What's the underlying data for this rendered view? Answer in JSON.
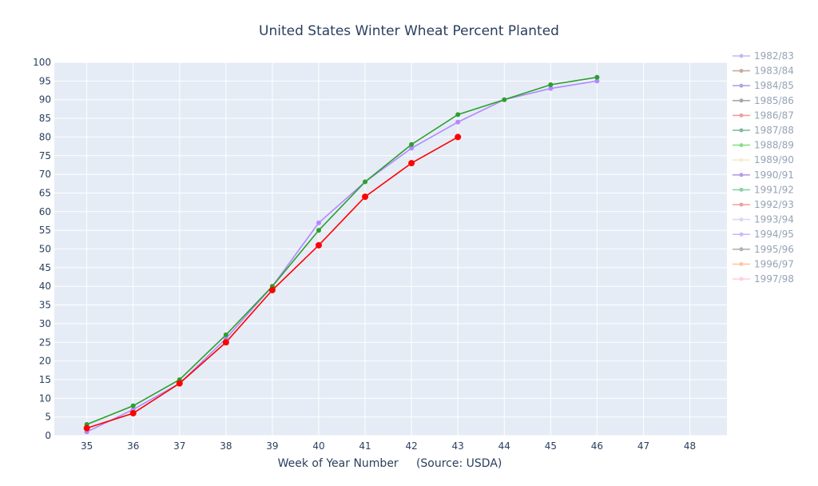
{
  "chart_data": {
    "type": "line",
    "title": "United States Winter Wheat Percent Planted",
    "xlabel": "Week of Year Number     (Source: USDA)",
    "ylabel": "",
    "xlim": [
      34.3,
      48.8
    ],
    "ylim": [
      0,
      100
    ],
    "x_ticks": [
      35,
      36,
      37,
      38,
      39,
      40,
      41,
      42,
      43,
      44,
      45,
      46,
      47,
      48
    ],
    "y_ticks": [
      0,
      5,
      10,
      15,
      20,
      25,
      30,
      35,
      40,
      45,
      50,
      55,
      60,
      65,
      70,
      75,
      80,
      85,
      90,
      95,
      100
    ],
    "grid": true,
    "legend_position": "right",
    "plot_background": "#e5ecf6",
    "series": [
      {
        "name": "1982/83",
        "color": "#9b8ce6",
        "opacity": 0.6,
        "x": [],
        "y": []
      },
      {
        "name": "1983/84",
        "color": "#a0785a",
        "opacity": 0.6,
        "x": [],
        "y": []
      },
      {
        "name": "1984/85",
        "color": "#7b68d6",
        "opacity": 0.6,
        "x": [],
        "y": []
      },
      {
        "name": "1985/86",
        "color": "#707070",
        "opacity": 0.6,
        "x": [],
        "y": []
      },
      {
        "name": "1986/87",
        "color": "#e06060",
        "opacity": 0.6,
        "x": [],
        "y": []
      },
      {
        "name": "1987/88",
        "color": "#2e8b57",
        "opacity": 0.6,
        "x": [],
        "y": []
      },
      {
        "name": "1988/89",
        "color": "#32cd32",
        "opacity": 0.6,
        "x": [],
        "y": []
      },
      {
        "name": "1989/90",
        "color": "#f5deb3",
        "opacity": 0.6,
        "x": [],
        "y": []
      },
      {
        "name": "1990/91",
        "color": "#8a5cd6",
        "opacity": 0.6,
        "x": [],
        "y": []
      },
      {
        "name": "1991/92",
        "color": "#3cb371",
        "opacity": 0.6,
        "x": [],
        "y": []
      },
      {
        "name": "1992/93",
        "color": "#e06060",
        "opacity": 0.6,
        "x": [],
        "y": []
      },
      {
        "name": "1993/94",
        "color": "#c0c0e8",
        "opacity": 0.6,
        "x": [],
        "y": []
      },
      {
        "name": "1994/95",
        "color": "#b388ff",
        "opacity": 0.6,
        "x": [],
        "y": []
      },
      {
        "name": "1995/96",
        "color": "#808080",
        "opacity": 0.6,
        "x": [],
        "y": []
      },
      {
        "name": "1996/97",
        "color": "#ffa060",
        "opacity": 0.6,
        "x": [],
        "y": []
      },
      {
        "name": "1997/98",
        "color": "#ffb0c0",
        "opacity": 0.6,
        "x": [],
        "y": []
      }
    ],
    "plotted_series": [
      {
        "color": "#b388ff",
        "marker_size": 3,
        "x": [
          35,
          36,
          37,
          38,
          39,
          40,
          41,
          42,
          43,
          44,
          45,
          46
        ],
        "y": [
          1,
          7,
          14,
          26,
          40,
          57,
          68,
          77,
          84,
          90,
          93,
          95
        ]
      },
      {
        "color": "#2ca02c",
        "marker_size": 3,
        "x": [
          35,
          36,
          37,
          38,
          39,
          40,
          41,
          42,
          43,
          44,
          45,
          46
        ],
        "y": [
          3,
          8,
          15,
          27,
          40,
          55,
          68,
          78,
          86,
          90,
          94,
          96
        ]
      },
      {
        "color": "#ff0000",
        "marker_size": 4,
        "x": [
          35,
          36,
          37,
          38,
          39,
          40,
          41,
          42,
          43
        ],
        "y": [
          2,
          6,
          14,
          25,
          39,
          51,
          64,
          73,
          80
        ]
      }
    ]
  }
}
